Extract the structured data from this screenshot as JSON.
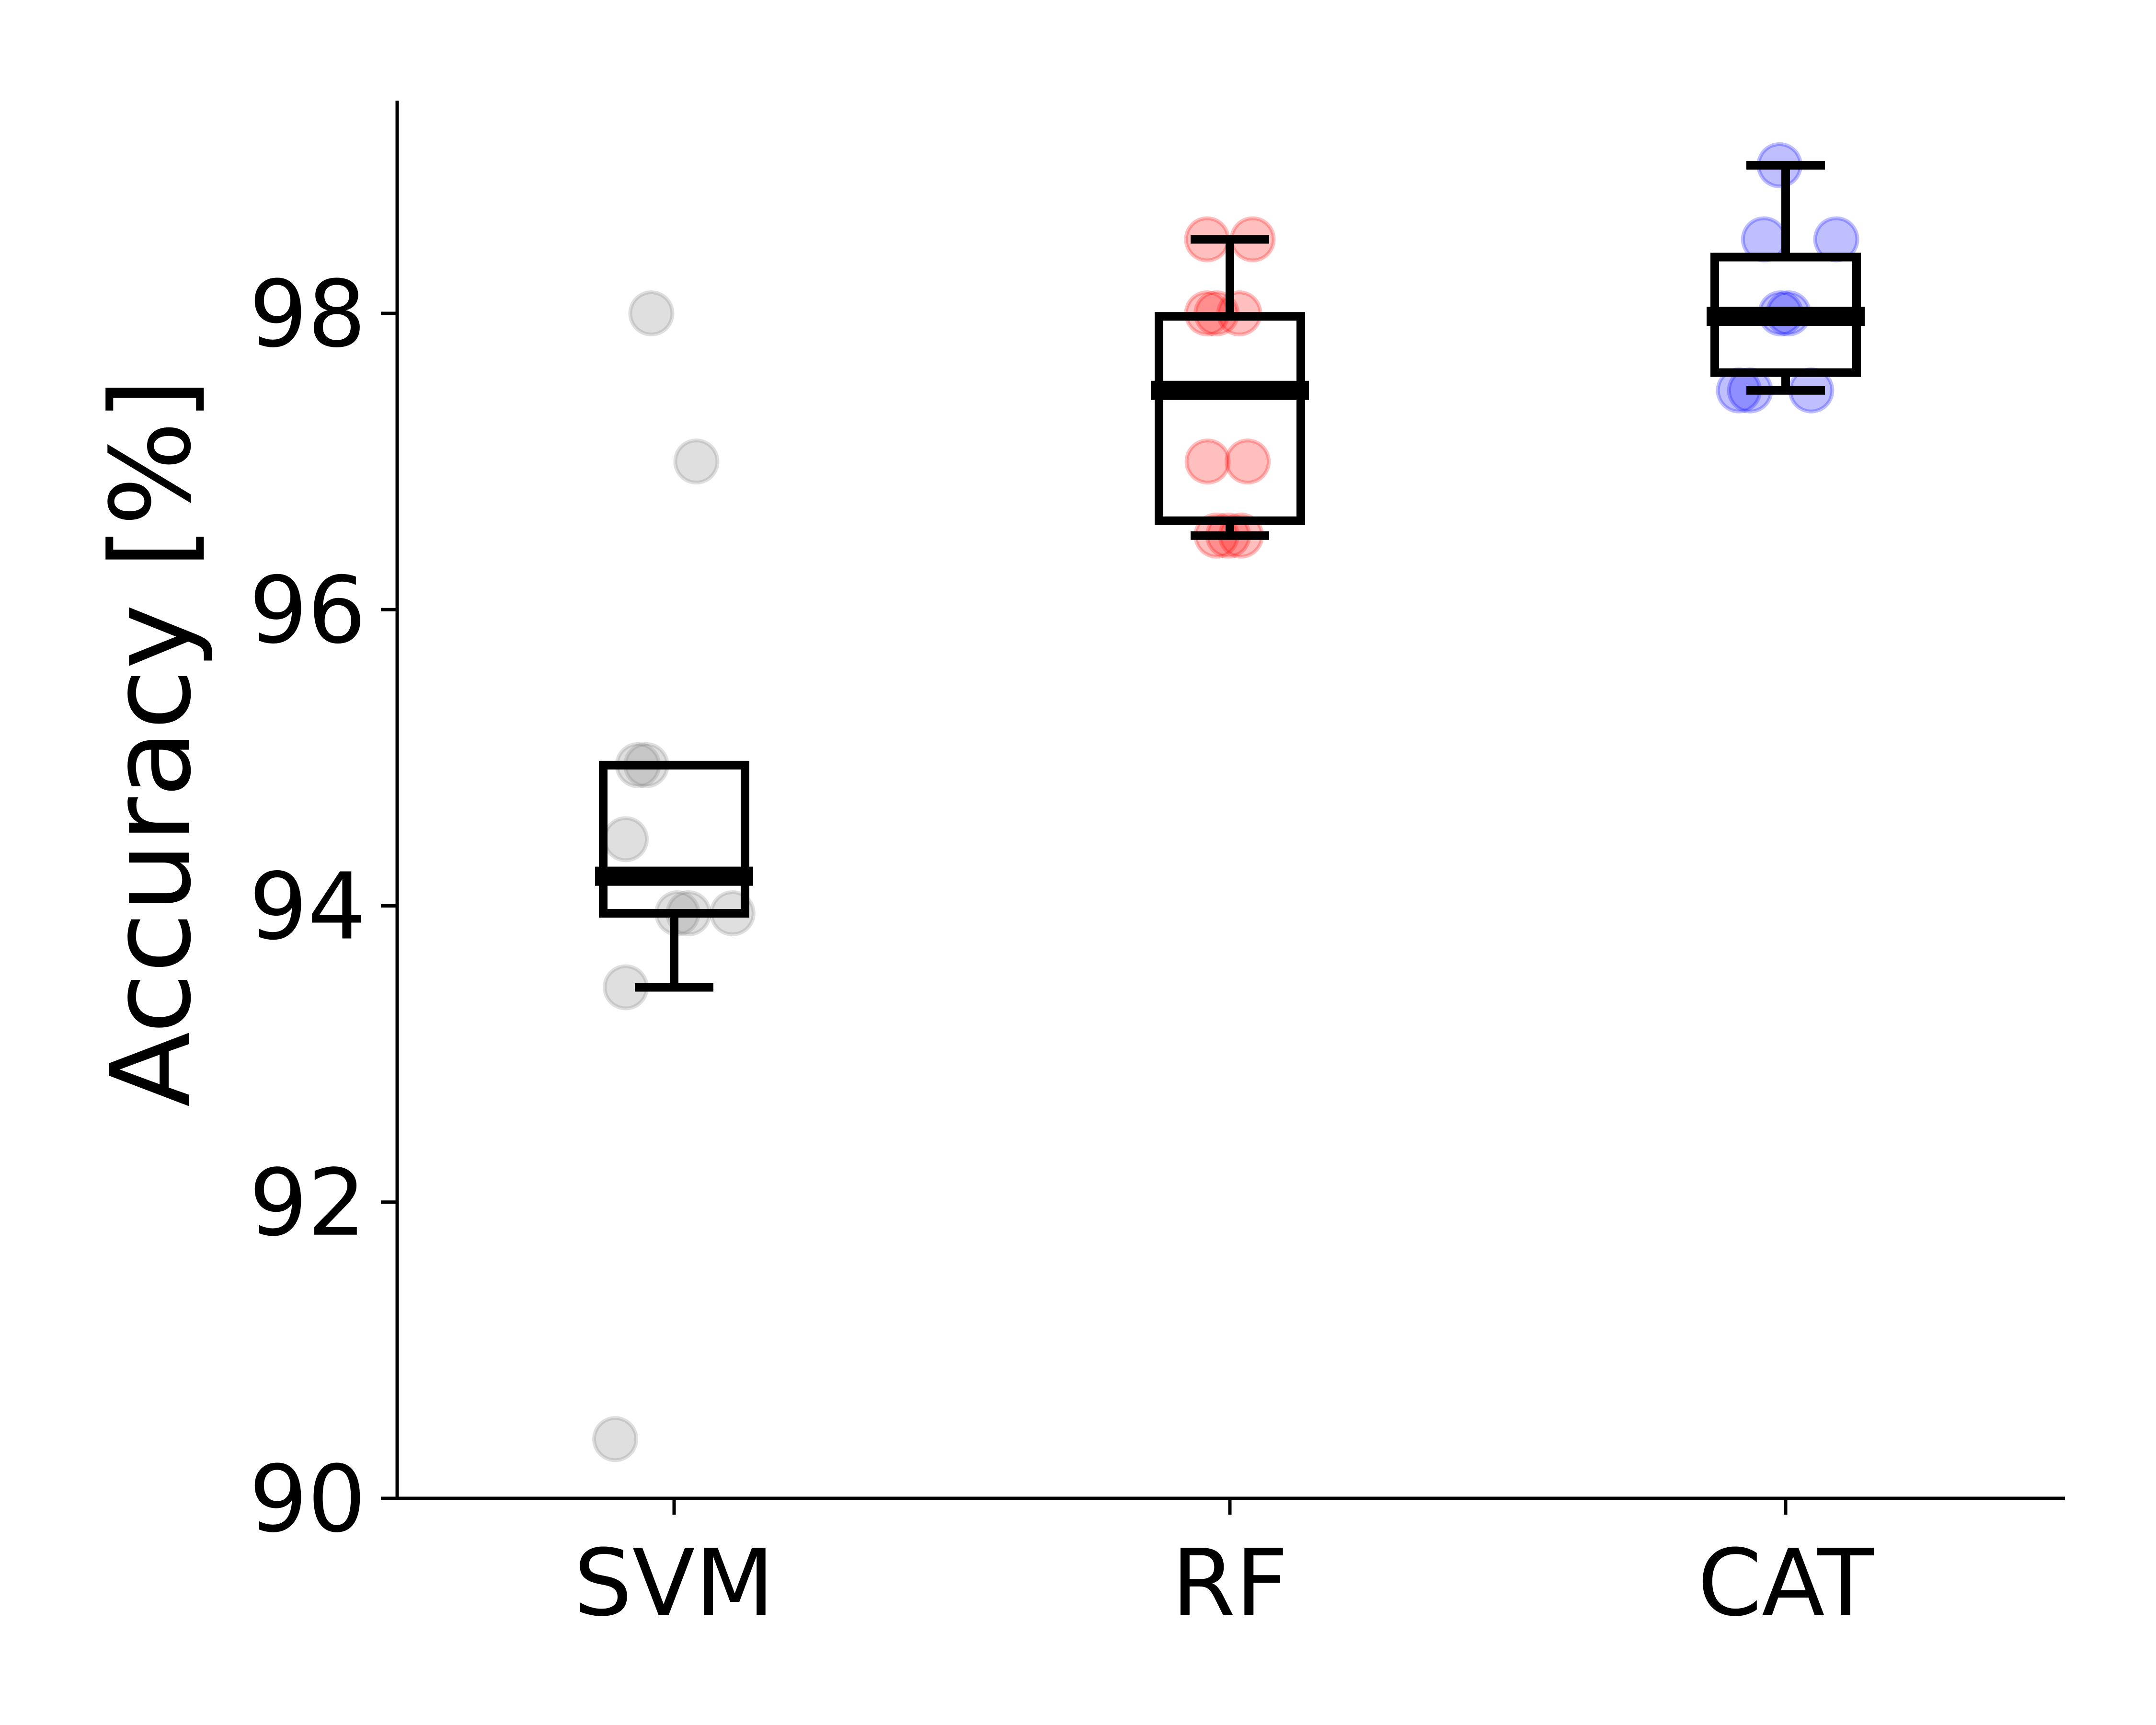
{
  "chart_data": {
    "type": "box",
    "title": "",
    "xlabel": "",
    "ylabel": "Accuracy [%]",
    "ylim": [
      90,
      99.4
    ],
    "yticks": [
      90,
      92,
      94,
      96,
      98
    ],
    "ytick_labels": [
      "90",
      "92",
      "94",
      "96",
      "98"
    ],
    "categories": [
      "SVM",
      "RF",
      "CAT"
    ],
    "grid": false,
    "legend": "none",
    "boxes": [
      {
        "category": "SVM",
        "color": "#808080",
        "whisker_low": 93.45,
        "q1": 93.95,
        "median": 94.2,
        "q3": 94.95,
        "whisker_high": 94.95,
        "points": [
          {
            "x": 89.4,
            "y": 90.4
          },
          {
            "x": 95.9,
            "y": 98.0
          },
          {
            "x": 104.0,
            "y": 97.0
          },
          {
            "x": 93.5,
            "y": 94.95
          },
          {
            "x": 95.0,
            "y": 94.95
          },
          {
            "x": 91.3,
            "y": 94.45
          },
          {
            "x": 100.6,
            "y": 93.95
          },
          {
            "x": 102.6,
            "y": 93.95
          },
          {
            "x": 110.5,
            "y": 93.95
          },
          {
            "x": 91.3,
            "y": 93.45
          }
        ]
      },
      {
        "category": "RF",
        "color": "#ff0000",
        "whisker_low": 96.5,
        "q1": 96.6,
        "median": 97.48,
        "q3": 97.98,
        "whisker_high": 98.5,
        "points": [
          {
            "x": 195.9,
            "y": 98.5
          },
          {
            "x": 204.1,
            "y": 98.5
          },
          {
            "x": 195.9,
            "y": 98.0
          },
          {
            "x": 197.6,
            "y": 98.0
          },
          {
            "x": 201.7,
            "y": 98.0
          },
          {
            "x": 196.0,
            "y": 97.0
          },
          {
            "x": 203.2,
            "y": 97.0
          },
          {
            "x": 197.6,
            "y": 96.5
          },
          {
            "x": 199.7,
            "y": 96.5
          },
          {
            "x": 202.0,
            "y": 96.5
          }
        ]
      },
      {
        "category": "CAT",
        "color": "#0000ff",
        "whisker_low": 97.48,
        "q1": 97.6,
        "median": 97.98,
        "q3": 98.38,
        "whisker_high": 99.0,
        "points": [
          {
            "x": 298.9,
            "y": 99.0
          },
          {
            "x": 296.1,
            "y": 98.5
          },
          {
            "x": 309.1,
            "y": 98.5
          },
          {
            "x": 299.1,
            "y": 98.0
          },
          {
            "x": 300.5,
            "y": 98.0
          },
          {
            "x": 291.6,
            "y": 97.48
          },
          {
            "x": 293.6,
            "y": 97.48
          },
          {
            "x": 304.6,
            "y": 97.48
          }
        ]
      }
    ]
  }
}
